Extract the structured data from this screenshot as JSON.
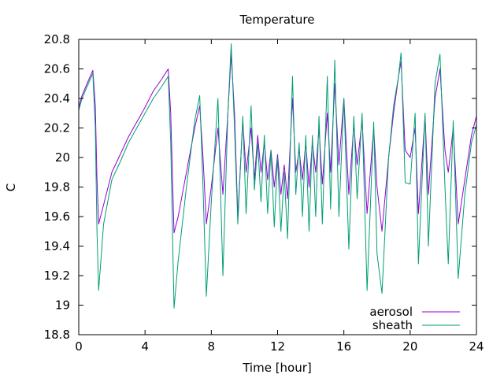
{
  "chart_data": {
    "type": "line",
    "title": "Temperature",
    "xlabel": "Time [hour]",
    "ylabel": "C",
    "xlim": [
      0,
      24
    ],
    "ylim": [
      18.8,
      20.8
    ],
    "xticks": [
      0,
      4,
      8,
      12,
      16,
      20,
      24
    ],
    "xtick_labels": [
      "0",
      "4",
      "8",
      "12",
      "16",
      "20",
      "24"
    ],
    "yticks": [
      18.8,
      19,
      19.2,
      19.4,
      19.6,
      19.8,
      20,
      20.2,
      20.4,
      20.6,
      20.8
    ],
    "ytick_labels": [
      "18.8",
      "19",
      "19.2",
      "19.4",
      "19.6",
      "19.8",
      "20",
      "20.2",
      "20.4",
      "20.6",
      "20.8"
    ],
    "grid": false,
    "legend_position": "bottom-right",
    "series": [
      {
        "name": "aerosol",
        "color": "#9400d3",
        "points": [
          [
            0.0,
            20.34
          ],
          [
            0.2,
            20.42
          ],
          [
            0.5,
            20.5
          ],
          [
            0.85,
            20.59
          ],
          [
            1.0,
            20.35
          ],
          [
            1.1,
            19.85
          ],
          [
            1.2,
            19.55
          ],
          [
            1.5,
            19.68
          ],
          [
            2.0,
            19.9
          ],
          [
            2.5,
            20.02
          ],
          [
            3.0,
            20.14
          ],
          [
            3.5,
            20.24
          ],
          [
            4.0,
            20.34
          ],
          [
            4.5,
            20.45
          ],
          [
            5.0,
            20.53
          ],
          [
            5.4,
            20.6
          ],
          [
            5.55,
            20.3
          ],
          [
            5.75,
            19.49
          ],
          [
            6.0,
            19.6
          ],
          [
            6.5,
            19.9
          ],
          [
            7.0,
            20.2
          ],
          [
            7.3,
            20.35
          ],
          [
            7.5,
            20.0
          ],
          [
            7.7,
            19.55
          ],
          [
            8.0,
            19.8
          ],
          [
            8.4,
            20.2
          ],
          [
            8.7,
            19.75
          ],
          [
            9.0,
            20.3
          ],
          [
            9.2,
            20.7
          ],
          [
            9.4,
            20.3
          ],
          [
            9.6,
            19.6
          ],
          [
            9.9,
            20.25
          ],
          [
            10.1,
            19.9
          ],
          [
            10.4,
            20.2
          ],
          [
            10.6,
            19.85
          ],
          [
            10.8,
            20.15
          ],
          [
            11.0,
            19.9
          ],
          [
            11.2,
            20.1
          ],
          [
            11.4,
            19.85
          ],
          [
            11.6,
            20.05
          ],
          [
            11.8,
            19.8
          ],
          [
            12.0,
            20.02
          ],
          [
            12.2,
            19.75
          ],
          [
            12.4,
            19.95
          ],
          [
            12.6,
            19.72
          ],
          [
            12.9,
            20.4
          ],
          [
            13.1,
            19.9
          ],
          [
            13.3,
            20.05
          ],
          [
            13.5,
            19.85
          ],
          [
            13.7,
            20.1
          ],
          [
            13.9,
            19.8
          ],
          [
            14.1,
            20.1
          ],
          [
            14.3,
            19.9
          ],
          [
            14.5,
            20.2
          ],
          [
            14.7,
            19.82
          ],
          [
            15.0,
            20.3
          ],
          [
            15.2,
            19.9
          ],
          [
            15.45,
            20.5
          ],
          [
            15.7,
            19.95
          ],
          [
            16.0,
            20.4
          ],
          [
            16.3,
            19.75
          ],
          [
            16.6,
            20.22
          ],
          [
            16.8,
            19.95
          ],
          [
            17.1,
            20.25
          ],
          [
            17.4,
            19.62
          ],
          [
            17.8,
            20.2
          ],
          [
            18.0,
            19.8
          ],
          [
            18.3,
            19.5
          ],
          [
            18.7,
            20.0
          ],
          [
            19.0,
            20.3
          ],
          [
            19.3,
            20.55
          ],
          [
            19.45,
            20.65
          ],
          [
            19.7,
            20.05
          ],
          [
            20.0,
            20.0
          ],
          [
            20.3,
            20.2
          ],
          [
            20.5,
            19.62
          ],
          [
            20.9,
            20.28
          ],
          [
            21.1,
            19.75
          ],
          [
            21.5,
            20.4
          ],
          [
            21.8,
            20.6
          ],
          [
            22.1,
            20.05
          ],
          [
            22.3,
            19.9
          ],
          [
            22.6,
            20.2
          ],
          [
            22.9,
            19.55
          ],
          [
            23.3,
            19.85
          ],
          [
            23.7,
            20.15
          ],
          [
            24.0,
            20.28
          ]
        ]
      },
      {
        "name": "sheath",
        "color": "#009e73",
        "points": [
          [
            0.0,
            20.32
          ],
          [
            0.2,
            20.4
          ],
          [
            0.5,
            20.48
          ],
          [
            0.85,
            20.57
          ],
          [
            1.0,
            20.2
          ],
          [
            1.1,
            19.5
          ],
          [
            1.2,
            19.1
          ],
          [
            1.5,
            19.55
          ],
          [
            2.0,
            19.85
          ],
          [
            2.5,
            19.97
          ],
          [
            3.0,
            20.1
          ],
          [
            3.5,
            20.2
          ],
          [
            4.0,
            20.3
          ],
          [
            4.5,
            20.4
          ],
          [
            5.0,
            20.48
          ],
          [
            5.4,
            20.55
          ],
          [
            5.55,
            20.1
          ],
          [
            5.75,
            18.98
          ],
          [
            6.0,
            19.3
          ],
          [
            6.5,
            19.8
          ],
          [
            7.0,
            20.25
          ],
          [
            7.3,
            20.42
          ],
          [
            7.5,
            19.8
          ],
          [
            7.7,
            19.06
          ],
          [
            8.0,
            19.7
          ],
          [
            8.4,
            20.4
          ],
          [
            8.7,
            19.2
          ],
          [
            9.0,
            20.3
          ],
          [
            9.2,
            20.77
          ],
          [
            9.4,
            20.2
          ],
          [
            9.6,
            19.55
          ],
          [
            9.9,
            20.28
          ],
          [
            10.1,
            19.62
          ],
          [
            10.4,
            20.35
          ],
          [
            10.6,
            19.78
          ],
          [
            10.8,
            20.1
          ],
          [
            11.0,
            19.7
          ],
          [
            11.2,
            20.15
          ],
          [
            11.4,
            19.62
          ],
          [
            11.6,
            20.05
          ],
          [
            11.8,
            19.53
          ],
          [
            12.0,
            20.0
          ],
          [
            12.2,
            19.5
          ],
          [
            12.4,
            19.9
          ],
          [
            12.6,
            19.45
          ],
          [
            12.9,
            20.55
          ],
          [
            13.1,
            19.75
          ],
          [
            13.3,
            20.1
          ],
          [
            13.5,
            19.6
          ],
          [
            13.7,
            20.15
          ],
          [
            13.9,
            19.5
          ],
          [
            14.1,
            20.15
          ],
          [
            14.3,
            19.6
          ],
          [
            14.5,
            20.28
          ],
          [
            14.7,
            19.55
          ],
          [
            15.0,
            20.55
          ],
          [
            15.2,
            19.65
          ],
          [
            15.45,
            20.66
          ],
          [
            15.7,
            19.6
          ],
          [
            16.0,
            20.4
          ],
          [
            16.3,
            19.38
          ],
          [
            16.6,
            20.28
          ],
          [
            16.8,
            19.72
          ],
          [
            17.1,
            20.3
          ],
          [
            17.4,
            19.1
          ],
          [
            17.8,
            20.24
          ],
          [
            18.0,
            19.35
          ],
          [
            18.3,
            19.08
          ],
          [
            18.7,
            20.0
          ],
          [
            19.0,
            20.35
          ],
          [
            19.3,
            20.55
          ],
          [
            19.45,
            20.71
          ],
          [
            19.7,
            19.83
          ],
          [
            20.0,
            19.82
          ],
          [
            20.3,
            20.3
          ],
          [
            20.5,
            19.28
          ],
          [
            20.9,
            20.3
          ],
          [
            21.1,
            19.4
          ],
          [
            21.5,
            20.5
          ],
          [
            21.8,
            20.7
          ],
          [
            22.1,
            19.8
          ],
          [
            22.3,
            19.28
          ],
          [
            22.6,
            20.25
          ],
          [
            22.9,
            19.18
          ],
          [
            23.3,
            19.75
          ],
          [
            23.7,
            20.1
          ],
          [
            24.0,
            20.22
          ]
        ]
      }
    ]
  }
}
